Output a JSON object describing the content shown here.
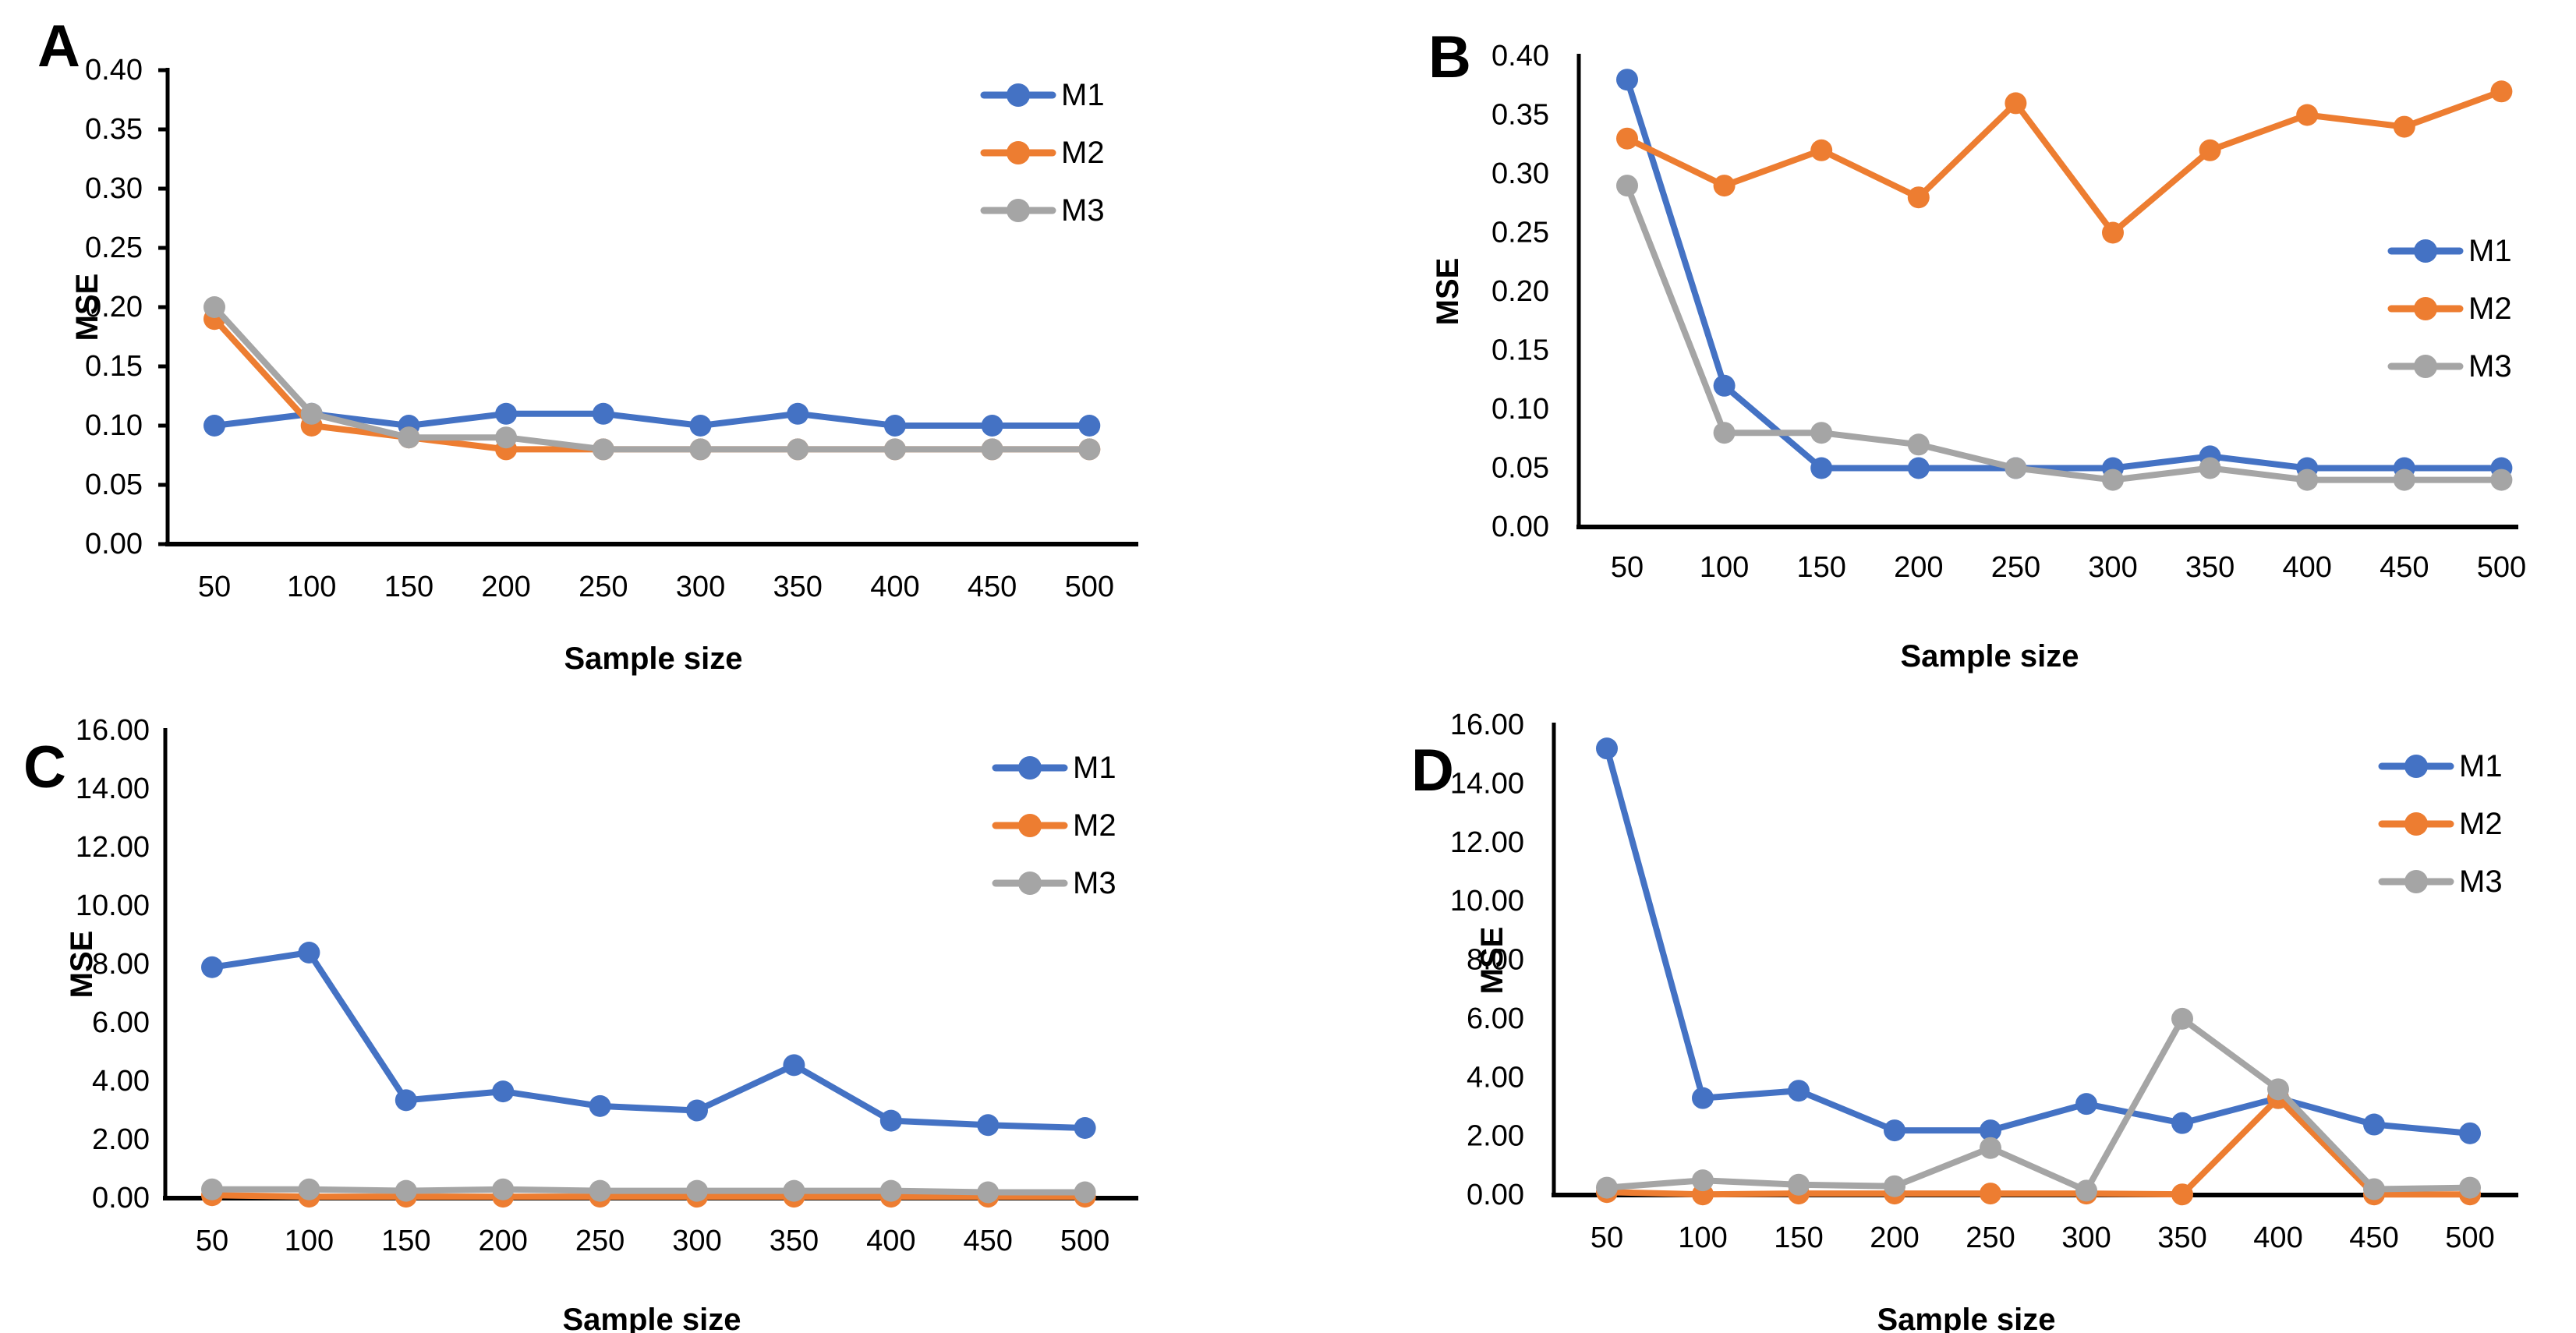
{
  "figure_background": "#ffffff",
  "colors": {
    "M1": "#4472C4",
    "M2": "#ED7D31",
    "M3": "#A5A5A5",
    "axis": "#000000",
    "text": "#000000"
  },
  "chart_data": [
    {
      "panel_label": "A",
      "type": "line",
      "xlabel": "Sample size",
      "ylabel": "MSE",
      "ylim": [
        0,
        0.4
      ],
      "ytick_labels": [
        "0.00",
        "0.05",
        "0.10",
        "0.15",
        "0.20",
        "0.25",
        "0.30",
        "0.35",
        "0.40"
      ],
      "categories": [
        50,
        100,
        150,
        200,
        250,
        300,
        350,
        400,
        450,
        500
      ],
      "xtick_labels": [
        "50",
        "100",
        "150",
        "200",
        "250",
        "300",
        "350",
        "400",
        "450",
        "500"
      ],
      "grid": false,
      "legend": {
        "position": "upper-right",
        "labels": [
          "M1",
          "M2",
          "M3"
        ]
      },
      "series": [
        {
          "name": "M1",
          "color_key": "M1",
          "values": [
            0.1,
            0.11,
            0.1,
            0.11,
            0.11,
            0.1,
            0.11,
            0.1,
            0.1,
            0.1
          ]
        },
        {
          "name": "M2",
          "color_key": "M2",
          "values": [
            0.19,
            0.1,
            0.09,
            0.08,
            0.08,
            0.08,
            0.08,
            0.08,
            0.08,
            0.08
          ]
        },
        {
          "name": "M3",
          "color_key": "M3",
          "values": [
            0.2,
            0.11,
            0.09,
            0.09,
            0.08,
            0.08,
            0.08,
            0.08,
            0.08,
            0.08
          ]
        }
      ]
    },
    {
      "panel_label": "B",
      "type": "line",
      "xlabel": "Sample size",
      "ylabel": "MSE",
      "ylim": [
        0,
        0.4
      ],
      "ytick_labels": [
        "0.00",
        "0.05",
        "0.10",
        "0.15",
        "0.20",
        "0.25",
        "0.30",
        "0.35",
        "0.40"
      ],
      "categories": [
        50,
        100,
        150,
        200,
        250,
        300,
        350,
        400,
        450,
        500
      ],
      "xtick_labels": [
        "50",
        "100",
        "150",
        "200",
        "250",
        "300",
        "350",
        "400",
        "450",
        "500"
      ],
      "grid": false,
      "legend": {
        "position": "middle-right",
        "labels": [
          "M1",
          "M2",
          "M3"
        ]
      },
      "series": [
        {
          "name": "M1",
          "color_key": "M1",
          "values": [
            0.38,
            0.12,
            0.05,
            0.05,
            0.05,
            0.05,
            0.06,
            0.05,
            0.05,
            0.05
          ]
        },
        {
          "name": "M2",
          "color_key": "M2",
          "values": [
            0.33,
            0.29,
            0.32,
            0.28,
            0.36,
            0.25,
            0.32,
            0.35,
            0.34,
            0.37
          ]
        },
        {
          "name": "M3",
          "color_key": "M3",
          "values": [
            0.29,
            0.08,
            0.08,
            0.07,
            0.05,
            0.04,
            0.05,
            0.04,
            0.04,
            0.04
          ]
        }
      ]
    },
    {
      "panel_label": "C",
      "type": "line",
      "xlabel": "Sample size",
      "ylabel": "MSE",
      "ylim": [
        0,
        16.0
      ],
      "ytick_labels": [
        "0.00",
        "2.00",
        "4.00",
        "6.00",
        "8.00",
        "10.00",
        "12.00",
        "14.00",
        "16.00"
      ],
      "categories": [
        50,
        100,
        150,
        200,
        250,
        300,
        350,
        400,
        450,
        500
      ],
      "xtick_labels": [
        "50",
        "100",
        "150",
        "200",
        "250",
        "300",
        "350",
        "400",
        "450",
        "500"
      ],
      "grid": false,
      "legend": {
        "position": "upper-right",
        "labels": [
          "M1",
          "M2",
          "M3"
        ]
      },
      "series": [
        {
          "name": "M1",
          "color_key": "M1",
          "values": [
            7.9,
            8.4,
            3.35,
            3.65,
            3.15,
            3.0,
            4.55,
            2.65,
            2.5,
            2.4
          ]
        },
        {
          "name": "M2",
          "color_key": "M2",
          "values": [
            0.1,
            0.05,
            0.05,
            0.05,
            0.05,
            0.05,
            0.05,
            0.05,
            0.05,
            0.05
          ]
        },
        {
          "name": "M3",
          "color_key": "M3",
          "values": [
            0.3,
            0.3,
            0.25,
            0.3,
            0.25,
            0.25,
            0.25,
            0.25,
            0.2,
            0.2
          ]
        }
      ]
    },
    {
      "panel_label": "D",
      "type": "line",
      "xlabel": "Sample size",
      "ylabel": "MSE",
      "ylim": [
        0,
        16.0
      ],
      "ytick_labels": [
        "0.00",
        "2.00",
        "4.00",
        "6.00",
        "8.00",
        "10.00",
        "12.00",
        "14.00",
        "16.00"
      ],
      "categories": [
        50,
        100,
        150,
        200,
        250,
        300,
        350,
        400,
        450,
        500
      ],
      "xtick_labels": [
        "50",
        "100",
        "150",
        "200",
        "250",
        "300",
        "350",
        "400",
        "450",
        "500"
      ],
      "grid": false,
      "legend": {
        "position": "upper-right",
        "labels": [
          "M1",
          "M2",
          "M3"
        ]
      },
      "series": [
        {
          "name": "M1",
          "color_key": "M1",
          "values": [
            15.2,
            3.3,
            3.55,
            2.2,
            2.2,
            3.1,
            2.45,
            3.3,
            2.4,
            2.1
          ]
        },
        {
          "name": "M2",
          "color_key": "M2",
          "values": [
            0.1,
            0.02,
            0.05,
            0.05,
            0.05,
            0.05,
            0.02,
            3.3,
            0.02,
            0.02
          ]
        },
        {
          "name": "M3",
          "color_key": "M3",
          "values": [
            0.25,
            0.5,
            0.35,
            0.3,
            1.6,
            0.15,
            6.0,
            3.6,
            0.2,
            0.25
          ]
        }
      ]
    }
  ]
}
